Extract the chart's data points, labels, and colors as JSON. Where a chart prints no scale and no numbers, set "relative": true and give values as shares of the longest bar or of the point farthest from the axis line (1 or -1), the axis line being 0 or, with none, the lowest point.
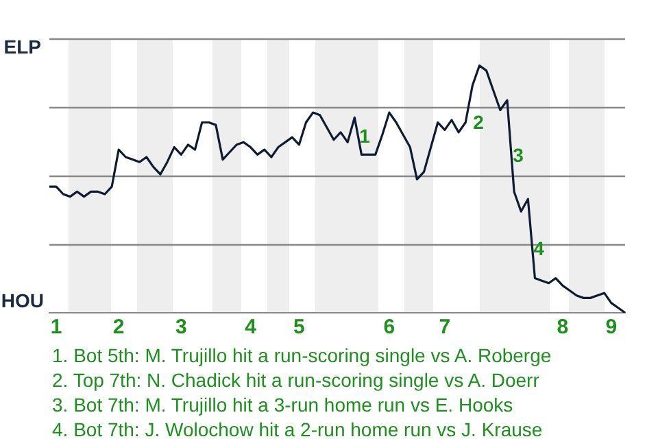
{
  "chart_data": {
    "type": "line",
    "relative": true,
    "categories": [
      null,
      "1",
      null,
      null,
      null,
      null,
      null,
      null,
      null,
      null,
      "2",
      null,
      null,
      null,
      null,
      null,
      null,
      null,
      null,
      "3",
      null,
      null,
      null,
      null,
      null,
      null,
      null,
      null,
      null,
      "4",
      null,
      null,
      null,
      null,
      null,
      null,
      "5",
      null,
      null,
      null,
      null,
      null,
      null,
      null,
      null,
      null,
      null,
      null,
      null,
      "6",
      null,
      null,
      null,
      null,
      null,
      null,
      null,
      "7",
      null,
      null,
      null,
      null,
      null,
      null,
      null,
      null,
      null,
      null,
      null,
      null,
      null,
      null,
      null,
      null,
      "8",
      null,
      null,
      null,
      null,
      null,
      null,
      "9",
      null,
      null
    ],
    "series": [
      {
        "color": "#0d1b33",
        "values": [
          0.51,
          0.51,
          0.48,
          0.47,
          0.49,
          0.47,
          0.49,
          0.49,
          0.48,
          0.51,
          0.66,
          0.63,
          0.62,
          0.61,
          0.63,
          0.59,
          0.56,
          0.61,
          0.67,
          0.64,
          0.68,
          0.66,
          0.77,
          0.77,
          0.76,
          0.62,
          0.65,
          0.68,
          0.69,
          0.67,
          0.64,
          0.66,
          0.63,
          0.67,
          0.69,
          0.71,
          0.68,
          0.77,
          0.81,
          0.8,
          0.75,
          0.7,
          0.73,
          0.69,
          0.79,
          0.64,
          0.64,
          0.64,
          0.72,
          0.81,
          0.77,
          0.72,
          0.67,
          0.54,
          0.57,
          0.67,
          0.77,
          0.74,
          0.78,
          0.73,
          0.77,
          0.92,
          1,
          0.98,
          0.9,
          0.82,
          0.86,
          0.49,
          0.41,
          0.46,
          0.14,
          0.13,
          0.12,
          0.14,
          0.11,
          0.09,
          0.07,
          0.06,
          0.06,
          0.07,
          0.08,
          0.04,
          0.02,
          0
        ]
      }
    ],
    "grid": "y",
    "marker": "none",
    "line_style": "solid",
    "legend": false,
    "annotations": [
      "ELP",
      "HOU",
      "1",
      "2",
      "3",
      "4",
      "1. Bot 5th: M. Trujillo hit a run-scoring single vs A. Roberge",
      "2. Top 7th: N. Chadick hit a run-scoring single vs A. Doerr",
      "3. Bot 7th: M. Trujillo hit a 3-run home run vs E. Hooks",
      "4. Bot 7th: J. Wolochow hit a 2-run home run vs J. Krause"
    ]
  }
}
